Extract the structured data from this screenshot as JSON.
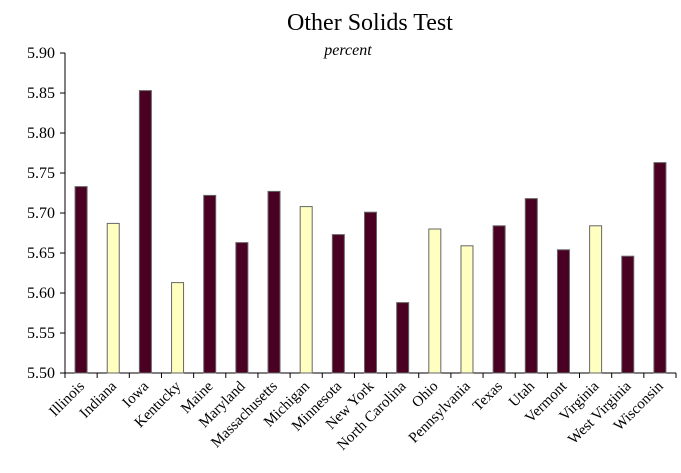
{
  "chart_data": {
    "type": "bar",
    "title": "Other Solids Test",
    "subtitle": "percent",
    "categories": [
      "Illinois",
      "Indiana",
      "Iowa",
      "Kentucky",
      "Maine",
      "Maryland",
      "Massachusetts",
      "Michigan",
      "Minnesota",
      "New York",
      "North Carolina",
      "Ohio",
      "Pennsylvania",
      "Texas",
      "Utah",
      "Vermont",
      "Virginia",
      "West Virginia",
      "Wisconsin"
    ],
    "values": [
      5.733,
      5.687,
      5.853,
      5.613,
      5.722,
      5.663,
      5.727,
      5.708,
      5.673,
      5.701,
      5.588,
      5.68,
      5.659,
      5.684,
      5.718,
      5.654,
      5.684,
      5.646,
      5.763
    ],
    "colors": [
      "#4a0022",
      "#ffffc0",
      "#4a0022",
      "#ffffc0",
      "#4a0022",
      "#4a0022",
      "#4a0022",
      "#ffffc0",
      "#4a0022",
      "#4a0022",
      "#4a0022",
      "#ffffc0",
      "#ffffc0",
      "#4a0022",
      "#4a0022",
      "#4a0022",
      "#ffffc0",
      "#4a0022",
      "#4a0022"
    ],
    "ylim": [
      5.5,
      5.9
    ],
    "yticks": [
      {
        "value": 5.5,
        "label": "5.50"
      },
      {
        "value": 5.55,
        "label": "5.55"
      },
      {
        "value": 5.6,
        "label": "5.60"
      },
      {
        "value": 5.65,
        "label": "5.65"
      },
      {
        "value": 5.7,
        "label": "5.70"
      },
      {
        "value": 5.75,
        "label": "5.75"
      },
      {
        "value": 5.8,
        "label": "5.80"
      },
      {
        "value": 5.85,
        "label": "5.85"
      },
      {
        "value": 5.9,
        "label": "5.90"
      }
    ],
    "grid": false
  }
}
